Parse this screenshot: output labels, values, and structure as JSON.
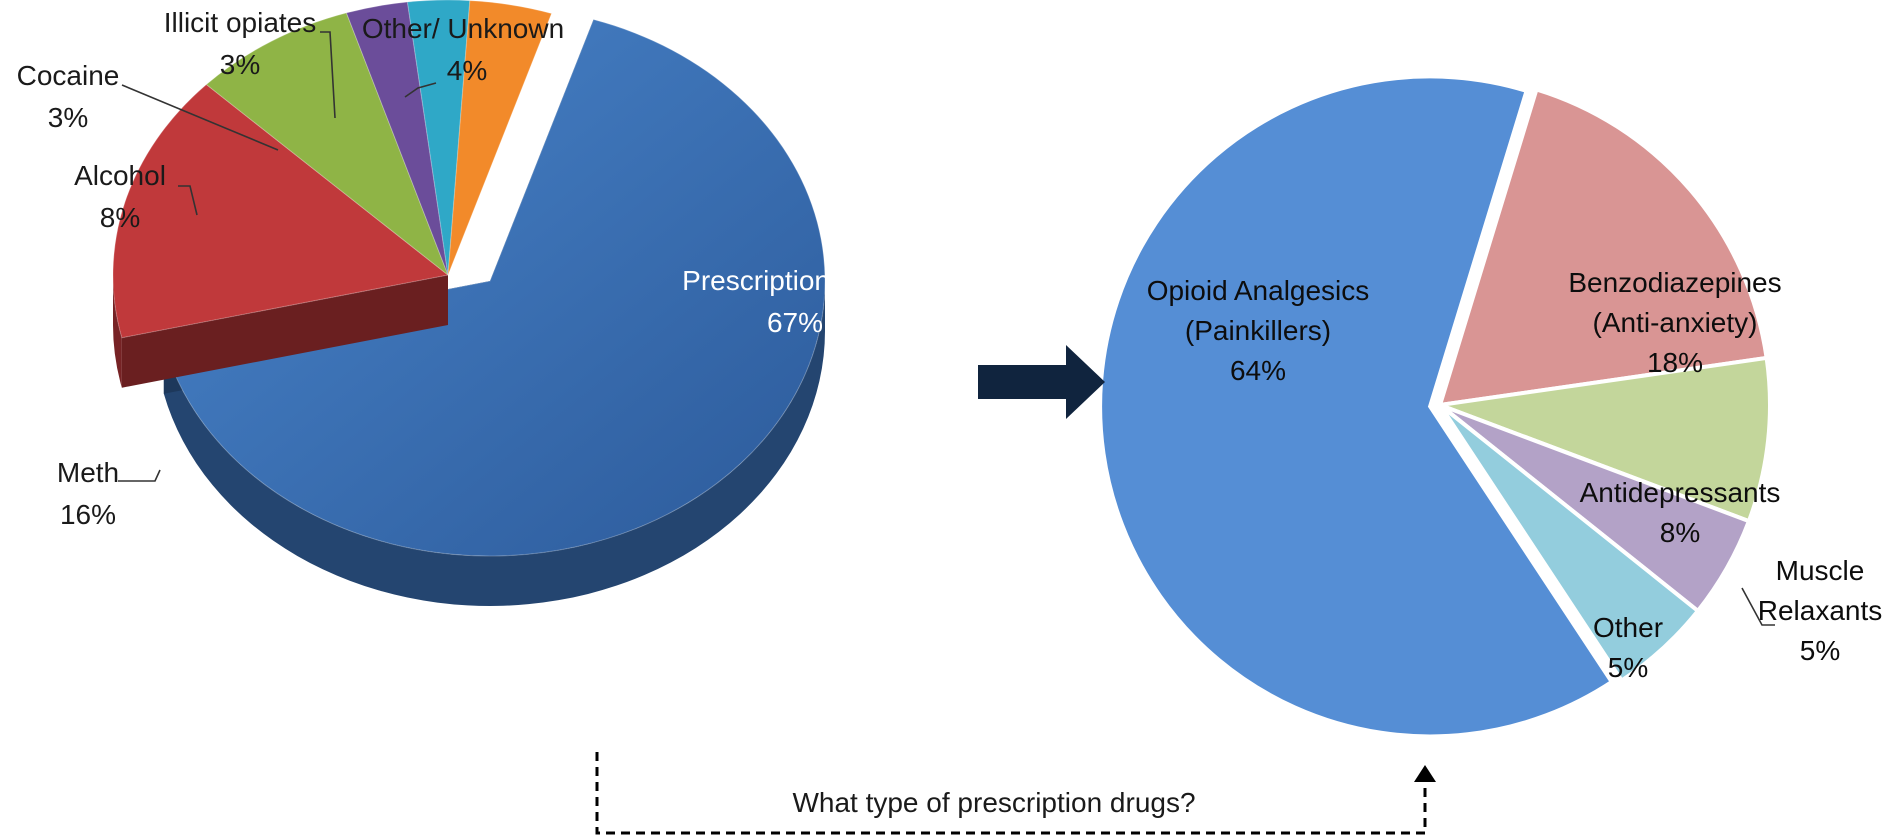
{
  "chart_data": [
    {
      "type": "pie",
      "slices": [
        {
          "label": "Prescription drugs",
          "value": 67,
          "value_label": "67%",
          "color": "#3a6fb5"
        },
        {
          "label": "Meth",
          "value": 16,
          "value_label": "16%",
          "color": "#c0393b"
        },
        {
          "label": "Alcohol",
          "value": 8,
          "value_label": "8%",
          "color": "#8fb446"
        },
        {
          "label": "Cocaine",
          "value": 3,
          "value_label": "3%",
          "color": "#6b4d9a"
        },
        {
          "label": "Illicit opiates",
          "value": 3,
          "value_label": "3%",
          "color": "#2fa8c7"
        },
        {
          "label": "Other/ Unknown",
          "value": 4,
          "value_label": "4%",
          "color": "#f28a2a"
        }
      ],
      "exploded_slice": "Prescription drugs",
      "style": "3d"
    },
    {
      "type": "pie",
      "slices": [
        {
          "label": "Opioid Analgesics (Painkillers)",
          "label_lines": [
            "Opioid Analgesics",
            "(Painkillers)"
          ],
          "value": 64,
          "value_label": "64%",
          "color": "#558ed5"
        },
        {
          "label": "Benzodiazepines (Anti-anxiety)",
          "label_lines": [
            "Benzodiazepines",
            "(Anti-anxiety)"
          ],
          "value": 18,
          "value_label": "18%",
          "color": "#d99594"
        },
        {
          "label": "Antidepressants",
          "label_lines": [
            "Antidepressants"
          ],
          "value": 8,
          "value_label": "8%",
          "color": "#c3d69b"
        },
        {
          "label": "Muscle Relaxants",
          "label_lines": [
            "Muscle",
            "Relaxants"
          ],
          "value": 5,
          "value_label": "5%",
          "color": "#b3a2c7"
        },
        {
          "label": "Other",
          "label_lines": [
            "Other"
          ],
          "value": 5,
          "value_label": "5%",
          "color": "#93cddd"
        }
      ],
      "exploded_slice": "Opioid Analgesics (Painkillers)",
      "style": "flat"
    }
  ],
  "bridge_label": "What type of prescription drugs?",
  "colors": {
    "arrow": "#10243e",
    "connector": "#000000",
    "separator": "#ffffff"
  }
}
